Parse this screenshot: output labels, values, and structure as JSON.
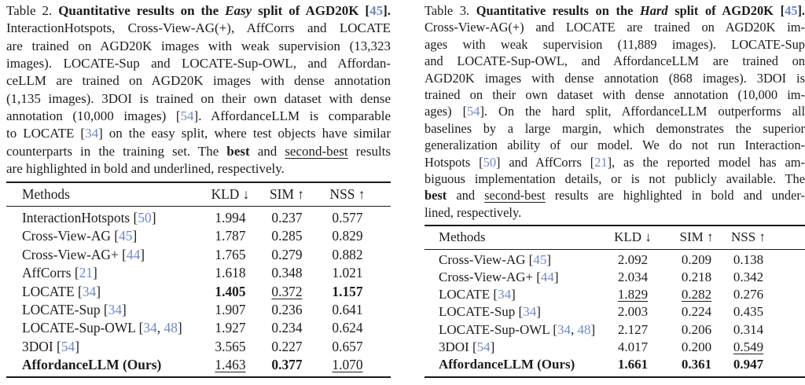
{
  "colors": {
    "ink": "#1c1c1c",
    "rule": "#1a1a1a",
    "citation": "#7089bf"
  },
  "left": {
    "caption_lines": [
      {
        "segs": [
          {
            "t": "Table 2. "
          },
          {
            "t": "Quantitative results on the ",
            "s": "b"
          },
          {
            "t": "Easy",
            "s": "bi"
          },
          {
            "t": " split of AGD20K ",
            "s": "b"
          },
          {
            "t": "[",
            "s": "b"
          },
          {
            "t": "45",
            "s": "bc"
          },
          {
            "t": "].",
            "s": "b"
          }
        ]
      },
      {
        "segs": [
          {
            "t": "InteractionHotspots, Cross-View-AG(+), AffCorrs and LOCATE"
          }
        ]
      },
      {
        "segs": [
          {
            "t": "are trained on AGD20K images with weak supervision (13,323"
          }
        ]
      },
      {
        "segs": [
          {
            "t": "images). LOCATE-Sup and LOCATE-Sup-OWL, and Affordan-"
          }
        ]
      },
      {
        "segs": [
          {
            "t": "ceLLM are trained on AGD20K images with dense annotation"
          }
        ]
      },
      {
        "segs": [
          {
            "t": "(1,135 images). 3DOI is trained on their own dataset with dense"
          }
        ]
      },
      {
        "segs": [
          {
            "t": "annotation (10,000 images) ["
          },
          {
            "t": "54",
            "s": "c"
          },
          {
            "t": "]. AffordanceLLM is comparable"
          }
        ]
      },
      {
        "segs": [
          {
            "t": "to LOCATE ["
          },
          {
            "t": "34",
            "s": "c"
          },
          {
            "t": "] on the easy split, where test objects have similar"
          }
        ]
      },
      {
        "segs": [
          {
            "t": "counterparts in the training set. The "
          },
          {
            "t": "best",
            "s": "b"
          },
          {
            "t": " and "
          },
          {
            "t": "second-best",
            "s": "u"
          },
          {
            "t": " results"
          }
        ]
      },
      {
        "segs": [
          {
            "t": "are highlighted in bold and underlined, respectively."
          }
        ],
        "end": true
      }
    ],
    "table": {
      "headers": [
        "Methods",
        "KLD ↓",
        "SIM ↑",
        "NSS ↑"
      ],
      "rows": [
        {
          "m": [
            {
              "t": "InteractionHotspots "
            },
            {
              "t": "["
            },
            {
              "t": "50",
              "s": "c"
            },
            {
              "t": "]"
            }
          ],
          "c": [
            {
              "v": "1.994"
            },
            {
              "v": "0.237"
            },
            {
              "v": "0.577"
            }
          ]
        },
        {
          "m": [
            {
              "t": "Cross-View-AG "
            },
            {
              "t": "["
            },
            {
              "t": "45",
              "s": "c"
            },
            {
              "t": "]"
            }
          ],
          "c": [
            {
              "v": "1.787"
            },
            {
              "v": "0.285"
            },
            {
              "v": "0.829"
            }
          ]
        },
        {
          "m": [
            {
              "t": "Cross-View-AG+ "
            },
            {
              "t": "["
            },
            {
              "t": "44",
              "s": "c"
            },
            {
              "t": "]"
            }
          ],
          "c": [
            {
              "v": "1.765"
            },
            {
              "v": "0.279"
            },
            {
              "v": "0.882"
            }
          ]
        },
        {
          "m": [
            {
              "t": "AffCorrs "
            },
            {
              "t": "["
            },
            {
              "t": "21",
              "s": "c"
            },
            {
              "t": "]"
            }
          ],
          "c": [
            {
              "v": "1.618"
            },
            {
              "v": "0.348"
            },
            {
              "v": "1.021"
            }
          ]
        },
        {
          "m": [
            {
              "t": "LOCATE "
            },
            {
              "t": "["
            },
            {
              "t": "34",
              "s": "c"
            },
            {
              "t": "]"
            }
          ],
          "c": [
            {
              "v": "1.405",
              "f": "b"
            },
            {
              "v": "0.372",
              "f": "u"
            },
            {
              "v": "1.157",
              "f": "b"
            }
          ]
        },
        {
          "m": [
            {
              "t": "LOCATE-Sup "
            },
            {
              "t": "["
            },
            {
              "t": "34",
              "s": "c"
            },
            {
              "t": "]"
            }
          ],
          "c": [
            {
              "v": "1.907"
            },
            {
              "v": "0.236"
            },
            {
              "v": "0.641"
            }
          ]
        },
        {
          "m": [
            {
              "t": "LOCATE-Sup-OWL "
            },
            {
              "t": "["
            },
            {
              "t": "34",
              "s": "c"
            },
            {
              "t": ", "
            },
            {
              "t": "48",
              "s": "c"
            },
            {
              "t": "]"
            }
          ],
          "c": [
            {
              "v": "1.927"
            },
            {
              "v": "0.234"
            },
            {
              "v": "0.624"
            }
          ]
        },
        {
          "m": [
            {
              "t": "3DOI "
            },
            {
              "t": "["
            },
            {
              "t": "54",
              "s": "c"
            },
            {
              "t": "]"
            }
          ],
          "c": [
            {
              "v": "3.565"
            },
            {
              "v": "0.227"
            },
            {
              "v": "0.657"
            }
          ]
        },
        {
          "m": [
            {
              "t": "AffordanceLLM (Ours)",
              "s": "b"
            }
          ],
          "c": [
            {
              "v": "1.463",
              "f": "u"
            },
            {
              "v": "0.377",
              "f": "b"
            },
            {
              "v": "1.070",
              "f": "u"
            }
          ]
        }
      ]
    }
  },
  "right": {
    "caption_lines": [
      {
        "segs": [
          {
            "t": "Table 3. "
          },
          {
            "t": "Quantitative results on the ",
            "s": "b"
          },
          {
            "t": "Hard",
            "s": "bi"
          },
          {
            "t": " split of AGD20K ",
            "s": "b"
          },
          {
            "t": "[",
            "s": "b"
          },
          {
            "t": "45",
            "s": "bc"
          },
          {
            "t": "].",
            "s": "b"
          }
        ]
      },
      {
        "segs": [
          {
            "t": "Cross-View-AG(+) and LOCATE are trained on AGD20K im-"
          }
        ]
      },
      {
        "segs": [
          {
            "t": "ages with weak supervision (11,889 images).  LOCATE-Sup"
          }
        ]
      },
      {
        "segs": [
          {
            "t": "and LOCATE-Sup-OWL, and AffordanceLLM are trained on"
          }
        ]
      },
      {
        "segs": [
          {
            "t": "AGD20K images with dense annotation (868 images). 3DOI is"
          }
        ]
      },
      {
        "segs": [
          {
            "t": "trained on their own dataset with dense annotation (10,000 im-"
          }
        ]
      },
      {
        "segs": [
          {
            "t": "ages) ["
          },
          {
            "t": "54",
            "s": "c"
          },
          {
            "t": "]. On the hard split, AffordanceLLM outperforms all"
          }
        ]
      },
      {
        "segs": [
          {
            "t": "baselines by a large margin, which demonstrates the superior"
          }
        ]
      },
      {
        "segs": [
          {
            "t": "generalization ability of our model. We do not run Interaction-"
          }
        ]
      },
      {
        "segs": [
          {
            "t": "Hotspots ["
          },
          {
            "t": "50",
            "s": "c"
          },
          {
            "t": "] and AffCorrs ["
          },
          {
            "t": "21",
            "s": "c"
          },
          {
            "t": "], as the reported model has am-"
          }
        ]
      },
      {
        "segs": [
          {
            "t": "biguous implementation details, or is not publicly available. The"
          }
        ]
      },
      {
        "segs": [
          {
            "t": "best",
            "s": "b"
          },
          {
            "t": " and "
          },
          {
            "t": "second-best",
            "s": "u"
          },
          {
            "t": " results are highlighted in bold and under-"
          }
        ]
      },
      {
        "segs": [
          {
            "t": "lined, respectively."
          }
        ],
        "end": true
      }
    ],
    "table": {
      "headers": [
        "Methods",
        "KLD ↓",
        "SIM ↑",
        "NSS ↑"
      ],
      "rows": [
        {
          "m": [
            {
              "t": "Cross-View-AG "
            },
            {
              "t": "["
            },
            {
              "t": "45",
              "s": "c"
            },
            {
              "t": "]"
            }
          ],
          "c": [
            {
              "v": "2.092"
            },
            {
              "v": "0.209"
            },
            {
              "v": "0.138"
            }
          ]
        },
        {
          "m": [
            {
              "t": "Cross-View-AG+ "
            },
            {
              "t": "["
            },
            {
              "t": "44",
              "s": "c"
            },
            {
              "t": "]"
            }
          ],
          "c": [
            {
              "v": "2.034"
            },
            {
              "v": "0.218"
            },
            {
              "v": "0.342"
            }
          ]
        },
        {
          "m": [
            {
              "t": "LOCATE "
            },
            {
              "t": "["
            },
            {
              "t": "34",
              "s": "c"
            },
            {
              "t": "]"
            }
          ],
          "c": [
            {
              "v": "1.829",
              "f": "u"
            },
            {
              "v": "0.282",
              "f": "u"
            },
            {
              "v": "0.276"
            }
          ]
        },
        {
          "m": [
            {
              "t": "LOCATE-Sup "
            },
            {
              "t": "["
            },
            {
              "t": "34",
              "s": "c"
            },
            {
              "t": "]"
            }
          ],
          "c": [
            {
              "v": "2.003"
            },
            {
              "v": "0.224"
            },
            {
              "v": "0.435"
            }
          ]
        },
        {
          "m": [
            {
              "t": "LOCATE-Sup-OWL "
            },
            {
              "t": "["
            },
            {
              "t": "34",
              "s": "c"
            },
            {
              "t": ", "
            },
            {
              "t": "48",
              "s": "c"
            },
            {
              "t": "]"
            }
          ],
          "c": [
            {
              "v": "2.127"
            },
            {
              "v": "0.206"
            },
            {
              "v": "0.314"
            }
          ]
        },
        {
          "m": [
            {
              "t": "3DOI "
            },
            {
              "t": "["
            },
            {
              "t": "54",
              "s": "c"
            },
            {
              "t": "]"
            }
          ],
          "c": [
            {
              "v": "4.017"
            },
            {
              "v": "0.200"
            },
            {
              "v": "0.549",
              "f": "u"
            }
          ]
        },
        {
          "m": [
            {
              "t": "AffordanceLLM (Ours)",
              "s": "b"
            }
          ],
          "c": [
            {
              "v": "1.661",
              "f": "b"
            },
            {
              "v": "0.361",
              "f": "b"
            },
            {
              "v": "0.947",
              "f": "b"
            }
          ]
        }
      ]
    }
  }
}
